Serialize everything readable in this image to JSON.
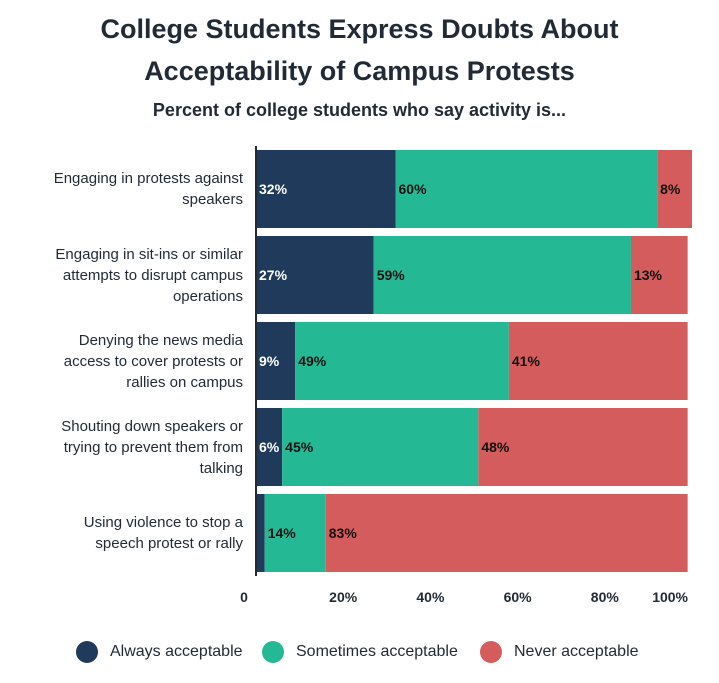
{
  "title_line1": "College Students Express Doubts About",
  "title_line2": "Acceptability of Campus Protests",
  "subtitle": "Percent of college students who say activity is...",
  "colors": {
    "always": "#1f3a5a",
    "sometimes": "#25b894",
    "never": "#d55c5c"
  },
  "legend": [
    {
      "label": "Always acceptable",
      "color": "#1f3a5a"
    },
    {
      "label": "Sometimes acceptable",
      "color": "#25b894"
    },
    {
      "label": "Never acceptable",
      "color": "#d55c5c"
    }
  ],
  "chart_data": {
    "type": "bar",
    "orientation": "horizontal",
    "stacked": true,
    "categories": [
      [
        "Engaging in protests against",
        "speakers"
      ],
      [
        "Engaging in sit-ins or similar",
        "attempts to disrupt campus",
        "operations"
      ],
      [
        "Denying the news media",
        "access to cover protests or",
        "rallies on campus"
      ],
      [
        "Shouting down speakers or",
        "trying to prevent them from",
        "talking"
      ],
      [
        "Using violence to stop a",
        "speech protest or rally"
      ]
    ],
    "series": [
      {
        "name": "Always acceptable",
        "values": [
          32,
          27,
          9,
          6,
          2
        ],
        "labels": [
          "32%",
          "27%",
          "9%",
          "6%",
          ""
        ]
      },
      {
        "name": "Sometimes acceptable",
        "values": [
          60,
          59,
          49,
          45,
          14
        ],
        "labels": [
          "60%",
          "59%",
          "49%",
          "45%",
          "14%"
        ]
      },
      {
        "name": "Never acceptable",
        "values": [
          8,
          13,
          41,
          48,
          83
        ],
        "labels": [
          "8%",
          "13%",
          "41%",
          "48%",
          "83%"
        ]
      }
    ],
    "xlim": [
      0,
      100
    ],
    "xticks": [
      "0",
      "20%",
      "40%",
      "60%",
      "80%",
      "100%"
    ],
    "tick_values": [
      0,
      20,
      40,
      60,
      80,
      100
    ],
    "legend_position": "bottom",
    "grid": false
  }
}
